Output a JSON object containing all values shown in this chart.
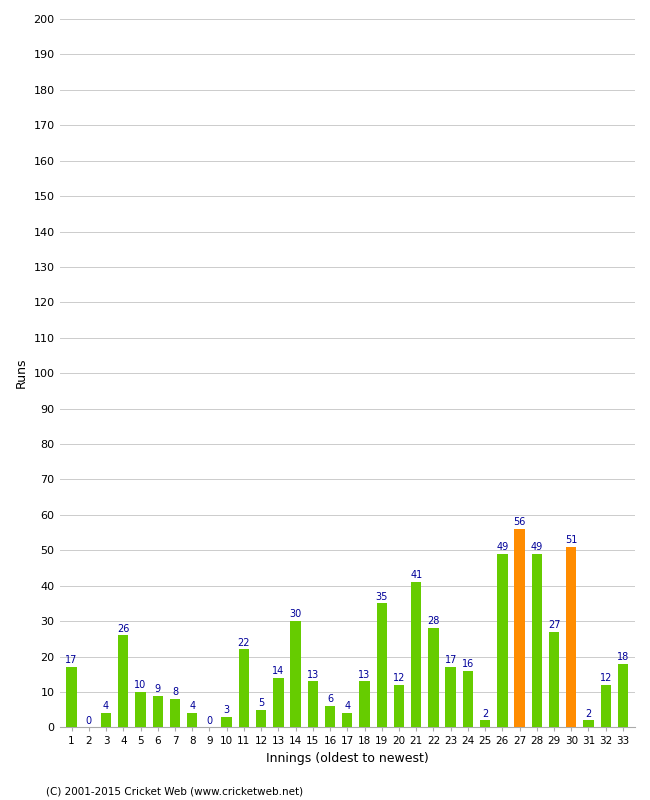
{
  "values": [
    17,
    0,
    4,
    26,
    10,
    9,
    8,
    4,
    0,
    3,
    22,
    5,
    14,
    30,
    13,
    6,
    4,
    13,
    35,
    12,
    41,
    28,
    17,
    16,
    2,
    49,
    56,
    49,
    27,
    51,
    2,
    12,
    18
  ],
  "innings": [
    "1",
    "2",
    "3",
    "4",
    "5",
    "6",
    "7",
    "8",
    "9",
    "10",
    "11",
    "12",
    "13",
    "14",
    "15",
    "16",
    "17",
    "18",
    "19",
    "20",
    "21",
    "22",
    "23",
    "24",
    "25",
    "26",
    "27",
    "28",
    "29",
    "30",
    "31",
    "32",
    "33"
  ],
  "colors": [
    "#66cc00",
    "#66cc00",
    "#66cc00",
    "#66cc00",
    "#66cc00",
    "#66cc00",
    "#66cc00",
    "#66cc00",
    "#66cc00",
    "#66cc00",
    "#66cc00",
    "#66cc00",
    "#66cc00",
    "#66cc00",
    "#66cc00",
    "#66cc00",
    "#66cc00",
    "#66cc00",
    "#66cc00",
    "#66cc00",
    "#66cc00",
    "#66cc00",
    "#66cc00",
    "#66cc00",
    "#66cc00",
    "#66cc00",
    "#ff8c00",
    "#66cc00",
    "#66cc00",
    "#ff8c00",
    "#66cc00",
    "#66cc00",
    "#66cc00"
  ],
  "xlabel": "Innings (oldest to newest)",
  "ylabel": "Runs",
  "ylim": [
    0,
    200
  ],
  "yticks": [
    0,
    10,
    20,
    30,
    40,
    50,
    60,
    70,
    80,
    90,
    100,
    110,
    120,
    130,
    140,
    150,
    160,
    170,
    180,
    190,
    200
  ],
  "label_color": "#000099",
  "footer": "(C) 2001-2015 Cricket Web (www.cricketweb.net)",
  "background_color": "#ffffff",
  "grid_color": "#cccccc",
  "bar_width": 0.6
}
